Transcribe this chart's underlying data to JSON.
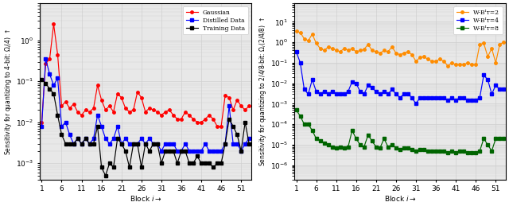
{
  "left_ylabel": "Sensitivity for quantizing to 4-bit: $\\Omega_i(4)$ $\\uparrow$",
  "right_ylabel": "Sensitivity for quantizing to 2/4/8-bit: $\\Omega_i(2/4/8)$ $\\uparrow$",
  "xlabel": "Block $i\\rightarrow$",
  "left_ylim": [
    0.0004,
    8.0
  ],
  "right_ylim": [
    2e-07,
    80.0
  ],
  "xticks": [
    1,
    6,
    11,
    16,
    21,
    26,
    31,
    36,
    41,
    46,
    51
  ],
  "n_blocks": 53,
  "legend_left": [
    "Gaussian",
    "Distilled Data",
    "Training Data"
  ],
  "legend_right": [
    "W-Bᴵᴛ=2",
    "W-Bᴵᴛ=4",
    "W-Bᴵᴛ=8"
  ],
  "colors_left": [
    "#ff0000",
    "#0000ff",
    "#000000"
  ],
  "colors_right": [
    "#ff8c00",
    "#0000ff",
    "#006400"
  ],
  "grid_color": "#d0d0d0",
  "bg_color": "#e8e8e8"
}
